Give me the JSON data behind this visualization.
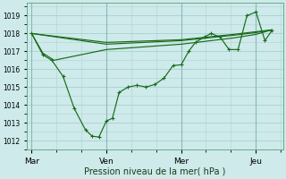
{
  "bg_color": "#ceeaea",
  "grid_color": "#aed4d4",
  "line_color": "#1a6b1a",
  "ylabel_ticks": [
    1012,
    1013,
    1014,
    1015,
    1016,
    1017,
    1018,
    1019
  ],
  "ylim": [
    1011.5,
    1019.7
  ],
  "xlabel": "Pression niveau de la mer( hPa )",
  "xtick_labels": [
    "Mar",
    "Ven",
    "Mer",
    "Jeu"
  ],
  "xtick_positions": [
    0.0,
    0.333,
    0.667,
    1.0
  ],
  "vlines": [
    0.0,
    0.333,
    0.667,
    1.0
  ],
  "series": [
    {
      "x": [
        0.0,
        0.05,
        0.09,
        0.14,
        0.19,
        0.24,
        0.27,
        0.3,
        0.333,
        0.36,
        0.39,
        0.43,
        0.47,
        0.51,
        0.55,
        0.59,
        0.63,
        0.667,
        0.7,
        0.73,
        0.77,
        0.8,
        0.84,
        0.88,
        0.92,
        0.96,
        1.0,
        1.04,
        1.07
      ],
      "y": [
        1018.0,
        1016.8,
        1016.5,
        1015.6,
        1013.8,
        1012.6,
        1012.25,
        1012.2,
        1013.1,
        1013.25,
        1014.7,
        1015.0,
        1015.1,
        1015.0,
        1015.15,
        1015.5,
        1016.2,
        1016.25,
        1017.0,
        1017.5,
        1017.8,
        1018.0,
        1017.8,
        1017.1,
        1017.1,
        1019.0,
        1019.2,
        1017.6,
        1018.15
      ],
      "marker": "+"
    },
    {
      "x": [
        0.0,
        0.333,
        0.667,
        0.9,
        1.0,
        1.07
      ],
      "y": [
        1018.0,
        1017.4,
        1017.6,
        1017.9,
        1018.05,
        1018.2
      ],
      "marker": null
    },
    {
      "x": [
        0.0,
        0.333,
        0.667,
        0.9,
        1.0,
        1.07
      ],
      "y": [
        1018.0,
        1017.5,
        1017.65,
        1017.95,
        1018.1,
        1018.2
      ],
      "marker": null
    },
    {
      "x": [
        0.0,
        0.05,
        0.1,
        0.333,
        0.667,
        0.9,
        1.0,
        1.07
      ],
      "y": [
        1018.0,
        1016.9,
        1016.5,
        1017.1,
        1017.4,
        1017.75,
        1017.95,
        1018.2
      ],
      "marker": null
    }
  ],
  "figsize": [
    3.2,
    2.0
  ],
  "dpi": 100
}
